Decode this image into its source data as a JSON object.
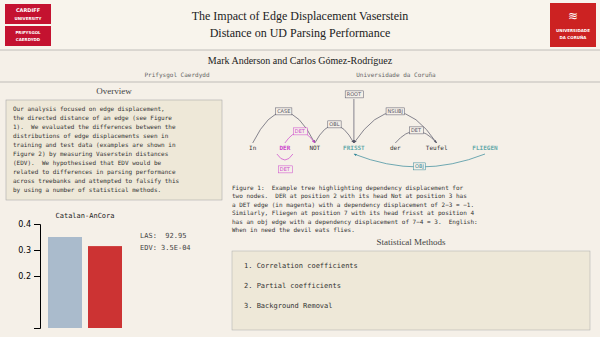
{
  "chart_data": {
    "type": "bar",
    "title": "Catalan-AnCora",
    "categories": [
      null,
      null
    ],
    "values": [
      0.35,
      0.315
    ],
    "colors": [
      "#aabbcc",
      "#cc3333"
    ],
    "ylim": [
      0,
      0.4
    ],
    "yticks": [
      0.2,
      0.3,
      0.4
    ],
    "tick_labels": "y",
    "annotations": [
      "The Impact of Edge Displacement Vaserstein",
      "Distance on UD Parsing Performance",
      "Mark Anderson and Carlos Gómez-Rodríguez",
      "Prifysgol Caerdydd",
      "Universidade da Coruña",
      "CARDIFF",
      "UNIVERSITY",
      "PRIFYSGOL",
      "CAERDYDD",
      "≋",
      "UNIVERSIDADE",
      "DA CORUÑA",
      "Overview",
      "Our analysis focused on edge displacement,",
      "the directed distance of an edge (see Figure",
      "1).  We evaluated the differences between the",
      "distributions of edge displacements seen in",
      "training and test data (examples are shown in",
      "Figure 2) by measuring Vaserstein distances",
      "(EDV).  We hypothesised that EDV would be",
      "related to differences in parsing performance",
      "across treebanks and attempted to falsify this",
      "by using a number of statistical methods.",
      "In",
      "DER",
      "NOT",
      "FRISST",
      "der",
      "Teufel",
      "FLIEGEN",
      "ROOT",
      "CASE",
      "OBL",
      "DET",
      "NSUBJ",
      "DET",
      "DET",
      "OBJ",
      "Figure 1:  Example tree highlighting dependency displacement for",
      "two nodes.  DER at position 2 with its head Not at position 3 has",
      "a DET edge (in magenta) with a dependency displacement of 2−3 = −1.",
      "Similarly, Fliegen at position 7 with its head frisst at position 4",
      "has an obj edge with a dependency displacement of 7−4 = 3.  English:",
      "When in need the devil eats flies.",
      "Statistical Methods",
      "1. Correlation coefficients",
      "2. Partial coefficients",
      "3. Background Removal",
      "LAS:  92.95",
      "EDV: 3.5E-04"
    ]
  }
}
